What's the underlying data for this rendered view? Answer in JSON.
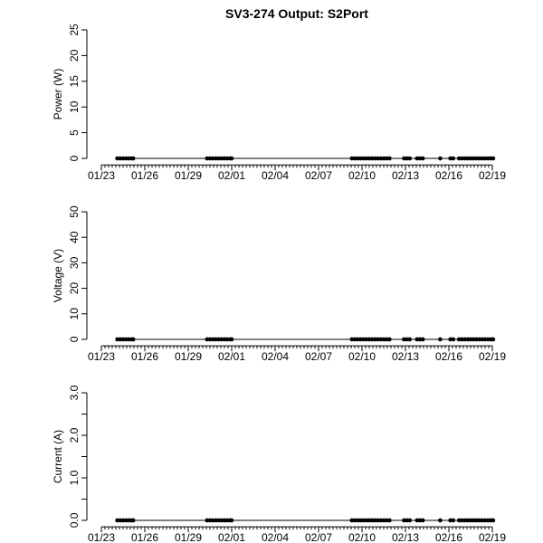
{
  "chart_data": [
    {
      "type": "line",
      "title": "SV3-274 Output: S2Port",
      "ylabel": "Power (W)",
      "x": [
        1.1,
        1.3,
        1.5,
        1.7,
        1.9,
        2.1,
        2.2,
        7.3,
        7.5,
        7.7,
        7.9,
        8.1,
        8.3,
        8.5,
        8.7,
        8.9,
        9.0,
        17.3,
        17.5,
        17.7,
        17.9,
        18.1,
        18.3,
        18.5,
        18.7,
        18.9,
        19.1,
        19.3,
        19.5,
        19.7,
        19.9,
        20.9,
        21.1,
        21.3,
        21.8,
        22.0,
        22.2,
        23.4,
        24.1,
        24.3,
        24.7,
        24.9,
        25.1,
        25.3,
        25.5,
        25.7,
        25.9,
        26.1,
        26.3,
        26.5,
        26.7,
        26.9,
        27.06
      ],
      "series": [
        {
          "color": "#000000",
          "values": [
            0,
            0,
            0,
            0,
            0,
            0,
            0,
            0,
            0,
            0,
            0,
            0,
            0,
            0,
            0,
            0,
            0,
            0,
            0,
            0,
            0,
            0,
            0,
            0,
            0,
            0,
            0,
            0,
            0,
            0,
            0,
            0,
            0,
            0,
            0,
            0,
            0,
            0,
            0,
            0,
            0,
            0,
            0,
            0,
            0,
            0,
            0,
            0,
            0,
            0,
            0,
            0,
            0
          ]
        }
      ],
      "xlim": [
        -1,
        28
      ],
      "ylim": [
        -1,
        26
      ],
      "xticks": [
        {
          "value": 0,
          "label": "01/23"
        },
        {
          "value": 3,
          "label": "01/26"
        },
        {
          "value": 6,
          "label": "01/29"
        },
        {
          "value": 9,
          "label": "02/01"
        },
        {
          "value": 12,
          "label": "02/04"
        },
        {
          "value": 15,
          "label": "02/07"
        },
        {
          "value": 18,
          "label": "02/10"
        },
        {
          "value": 21,
          "label": "02/13"
        },
        {
          "value": 24,
          "label": "02/16"
        },
        {
          "value": 27,
          "label": "02/19"
        }
      ],
      "yticks": [
        0,
        5,
        10,
        15,
        20,
        25
      ]
    },
    {
      "type": "line",
      "ylabel": "Voltage (V)",
      "x": [
        1.1,
        1.3,
        1.5,
        1.7,
        1.9,
        2.1,
        2.2,
        7.3,
        7.5,
        7.7,
        7.9,
        8.1,
        8.3,
        8.5,
        8.7,
        8.9,
        9.0,
        17.3,
        17.5,
        17.7,
        17.9,
        18.1,
        18.3,
        18.5,
        18.7,
        18.9,
        19.1,
        19.3,
        19.5,
        19.7,
        19.9,
        20.9,
        21.1,
        21.3,
        21.8,
        22.0,
        22.2,
        23.4,
        24.1,
        24.3,
        24.7,
        24.9,
        25.1,
        25.3,
        25.5,
        25.7,
        25.9,
        26.1,
        26.3,
        26.5,
        26.7,
        26.9,
        27.06
      ],
      "series": [
        {
          "color": "#000000",
          "values": [
            0,
            0,
            0,
            0,
            0,
            0,
            0,
            0,
            0,
            0,
            0,
            0,
            0,
            0,
            0,
            0,
            0,
            0,
            0,
            0,
            0,
            0,
            0,
            0,
            0,
            0,
            0,
            0,
            0,
            0,
            0,
            0,
            0,
            0,
            0,
            0,
            0,
            0,
            0,
            0,
            0,
            0,
            0,
            0,
            0,
            0,
            0,
            0,
            0,
            0,
            0,
            0,
            0
          ]
        }
      ],
      "xlim": [
        -1,
        28
      ],
      "ylim": [
        -2,
        52
      ],
      "xticks": [
        {
          "value": 0,
          "label": "01/23"
        },
        {
          "value": 3,
          "label": "01/26"
        },
        {
          "value": 6,
          "label": "01/29"
        },
        {
          "value": 9,
          "label": "02/01"
        },
        {
          "value": 12,
          "label": "02/04"
        },
        {
          "value": 15,
          "label": "02/07"
        },
        {
          "value": 18,
          "label": "02/10"
        },
        {
          "value": 21,
          "label": "02/13"
        },
        {
          "value": 24,
          "label": "02/16"
        },
        {
          "value": 27,
          "label": "02/19"
        }
      ],
      "yticks": [
        0,
        10,
        20,
        30,
        40,
        50
      ]
    },
    {
      "type": "line",
      "ylabel": "Current (A)",
      "x": [
        1.1,
        1.3,
        1.5,
        1.7,
        1.9,
        2.1,
        2.2,
        7.3,
        7.5,
        7.7,
        7.9,
        8.1,
        8.3,
        8.5,
        8.7,
        8.9,
        9.0,
        17.3,
        17.5,
        17.7,
        17.9,
        18.1,
        18.3,
        18.5,
        18.7,
        18.9,
        19.1,
        19.3,
        19.5,
        19.7,
        19.9,
        20.9,
        21.1,
        21.3,
        21.8,
        22.0,
        22.2,
        23.4,
        24.1,
        24.3,
        24.7,
        24.9,
        25.1,
        25.3,
        25.5,
        25.7,
        25.9,
        26.1,
        26.3,
        26.5,
        26.7,
        26.9,
        27.06
      ],
      "series": [
        {
          "color": "#000000",
          "values": [
            0,
            0,
            0,
            0,
            0,
            0,
            0,
            0,
            0,
            0,
            0,
            0,
            0,
            0,
            0,
            0,
            0,
            0,
            0,
            0,
            0,
            0,
            0,
            0,
            0,
            0,
            0,
            0,
            0,
            0,
            0,
            0,
            0,
            0,
            0,
            0,
            0,
            0,
            0,
            0,
            0,
            0,
            0,
            0,
            0,
            0,
            0,
            0,
            0,
            0,
            0,
            0,
            0
          ]
        }
      ],
      "xlim": [
        -1,
        28
      ],
      "ylim": [
        -0.12,
        3.12
      ],
      "xticks": [
        {
          "value": 0,
          "label": "01/23"
        },
        {
          "value": 3,
          "label": "01/26"
        },
        {
          "value": 6,
          "label": "01/29"
        },
        {
          "value": 9,
          "label": "02/01"
        },
        {
          "value": 12,
          "label": "02/04"
        },
        {
          "value": 15,
          "label": "02/07"
        },
        {
          "value": 18,
          "label": "02/10"
        },
        {
          "value": 21,
          "label": "02/13"
        },
        {
          "value": 24,
          "label": "02/16"
        },
        {
          "value": 27,
          "label": "02/19"
        }
      ],
      "yticks": [
        {
          "value": 0,
          "label": "0.0"
        },
        {
          "value": 1,
          "label": "1.0"
        },
        {
          "value": 2,
          "label": "2.0"
        },
        {
          "value": 3,
          "label": "3.0"
        }
      ],
      "yminor_ticks": [
        0.5,
        1.5,
        2.5
      ]
    }
  ]
}
